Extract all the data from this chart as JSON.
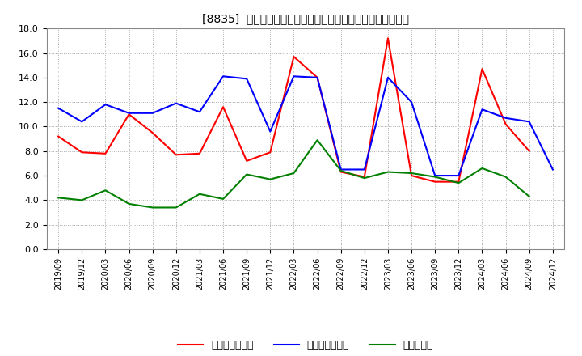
{
  "title": "[8835]  売上債権回転率、買入債務回転率、在庫回転率の推移",
  "x_labels": [
    "2019/09",
    "2019/12",
    "2020/03",
    "2020/06",
    "2020/09",
    "2020/12",
    "2021/03",
    "2021/06",
    "2021/09",
    "2021/12",
    "2022/03",
    "2022/06",
    "2022/09",
    "2022/12",
    "2023/03",
    "2023/06",
    "2023/09",
    "2023/12",
    "2024/03",
    "2024/06",
    "2024/09",
    "2024/12"
  ],
  "売上債権回転率": [
    9.2,
    7.9,
    7.8,
    11.0,
    9.5,
    7.7,
    7.8,
    11.6,
    7.2,
    7.9,
    15.7,
    14.0,
    6.3,
    5.9,
    17.2,
    6.0,
    5.5,
    5.5,
    14.7,
    10.2,
    8.0,
    null
  ],
  "買入債務回転率": [
    11.5,
    10.4,
    11.8,
    11.1,
    11.1,
    11.9,
    11.2,
    14.1,
    13.9,
    9.6,
    14.1,
    14.0,
    6.5,
    6.5,
    14.0,
    12.0,
    6.0,
    6.0,
    11.4,
    10.7,
    10.4,
    6.5
  ],
  "在庫回転率": [
    4.2,
    4.0,
    4.8,
    3.7,
    3.4,
    3.4,
    4.5,
    4.1,
    6.1,
    5.7,
    6.2,
    8.9,
    6.4,
    5.8,
    6.3,
    6.2,
    5.9,
    5.4,
    6.6,
    5.9,
    4.3,
    null
  ],
  "line_colors": {
    "売上債権回転率": "#ff0000",
    "買入債務回転率": "#0000ff",
    "在庫回転率": "#008000"
  },
  "ylim": [
    0.0,
    18.0
  ],
  "yticks": [
    0.0,
    2.0,
    4.0,
    6.0,
    8.0,
    10.0,
    12.0,
    14.0,
    16.0,
    18.0
  ],
  "legend_labels": [
    "売上債権回転率",
    "買入債務回転率",
    "在庫回転率"
  ],
  "background_color": "#ffffff",
  "grid_color": "#aaaaaa"
}
